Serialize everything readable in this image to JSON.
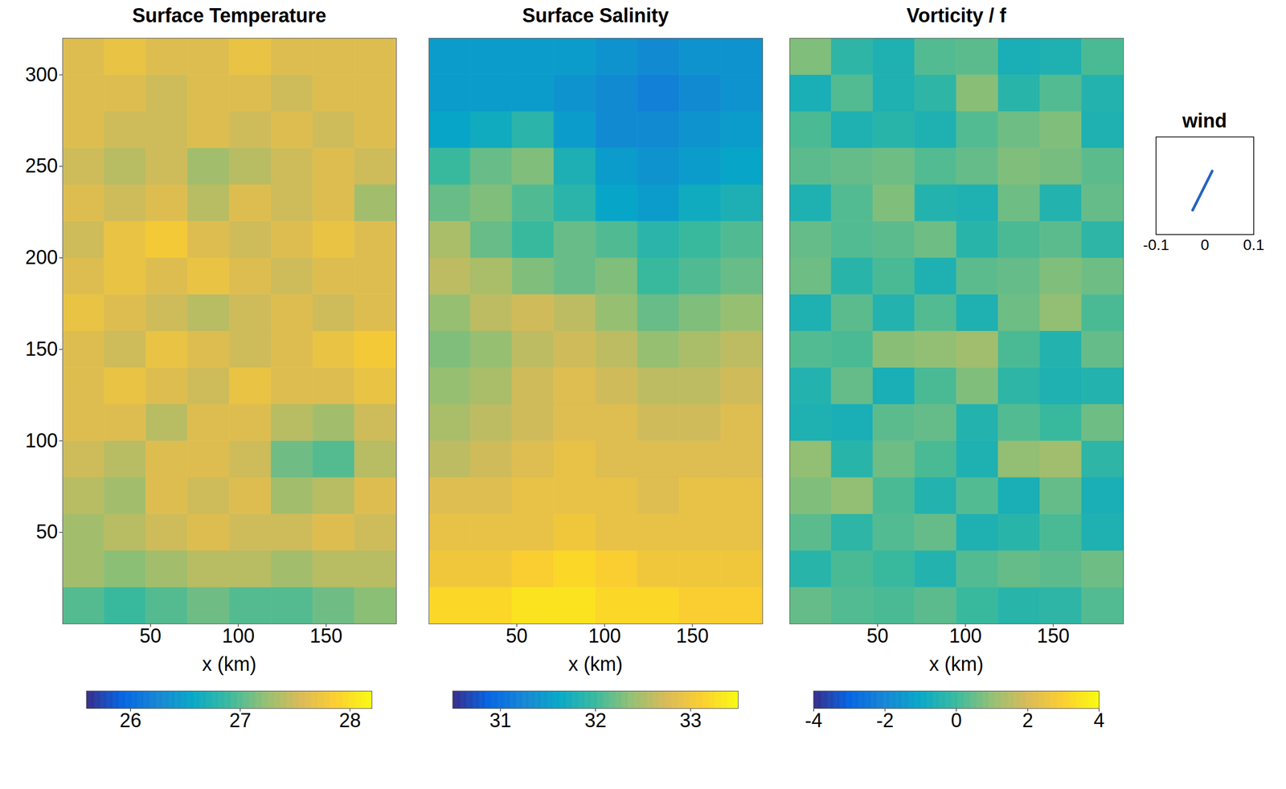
{
  "chart_data": [
    {
      "type": "heatmap",
      "title": "Surface Temperature",
      "xlabel": "x (km)",
      "xlim": [
        0,
        190
      ],
      "ylim": [
        0,
        320
      ],
      "xticks": [
        50,
        100,
        150
      ],
      "yticks": [
        50,
        100,
        150,
        200,
        250,
        300
      ],
      "x_edges": [
        0,
        23.75,
        47.5,
        71.25,
        95,
        118.75,
        142.5,
        166.25,
        190
      ],
      "y_edges": [
        0,
        20,
        40,
        60,
        80,
        100,
        120,
        140,
        160,
        180,
        200,
        220,
        240,
        260,
        280,
        300,
        320
      ],
      "values": [
        [
          27.0,
          26.9,
          27.0,
          27.1,
          27.0,
          27.0,
          27.1,
          27.2
        ],
        [
          27.3,
          27.2,
          27.3,
          27.4,
          27.4,
          27.3,
          27.4,
          27.4
        ],
        [
          27.3,
          27.4,
          27.5,
          27.6,
          27.5,
          27.5,
          27.6,
          27.5
        ],
        [
          27.4,
          27.3,
          27.6,
          27.5,
          27.6,
          27.3,
          27.4,
          27.6
        ],
        [
          27.5,
          27.4,
          27.6,
          27.6,
          27.5,
          27.1,
          27.0,
          27.4
        ],
        [
          27.6,
          27.6,
          27.4,
          27.6,
          27.6,
          27.4,
          27.3,
          27.5
        ],
        [
          27.6,
          27.7,
          27.6,
          27.5,
          27.7,
          27.6,
          27.6,
          27.7
        ],
        [
          27.6,
          27.5,
          27.7,
          27.6,
          27.5,
          27.6,
          27.7,
          27.8
        ],
        [
          27.7,
          27.6,
          27.5,
          27.4,
          27.5,
          27.6,
          27.5,
          27.6
        ],
        [
          27.6,
          27.7,
          27.6,
          27.7,
          27.6,
          27.5,
          27.6,
          27.6
        ],
        [
          27.5,
          27.7,
          27.8,
          27.6,
          27.5,
          27.6,
          27.7,
          27.6
        ],
        [
          27.6,
          27.5,
          27.6,
          27.4,
          27.6,
          27.5,
          27.6,
          27.3
        ],
        [
          27.5,
          27.4,
          27.5,
          27.3,
          27.4,
          27.5,
          27.6,
          27.5
        ],
        [
          27.6,
          27.5,
          27.5,
          27.6,
          27.5,
          27.6,
          27.5,
          27.6
        ],
        [
          27.6,
          27.6,
          27.5,
          27.6,
          27.6,
          27.5,
          27.6,
          27.6
        ],
        [
          27.6,
          27.7,
          27.6,
          27.6,
          27.7,
          27.6,
          27.6,
          27.6
        ]
      ],
      "colorbar": {
        "range": [
          25.6,
          28.2
        ],
        "ticks": [
          26,
          27,
          28
        ]
      }
    },
    {
      "type": "heatmap",
      "title": "Surface Salinity",
      "xlabel": "x (km)",
      "tick_labels": "x",
      "xlim": [
        0,
        190
      ],
      "ylim": [
        0,
        320
      ],
      "xticks": [
        50,
        100,
        150
      ],
      "yticks": [
        50,
        100,
        150,
        200,
        250,
        300
      ],
      "x_edges": [
        0,
        23.75,
        47.5,
        71.25,
        95,
        118.75,
        142.5,
        166.25,
        190
      ],
      "y_edges": [
        0,
        20,
        40,
        60,
        80,
        100,
        120,
        140,
        160,
        180,
        200,
        220,
        240,
        260,
        280,
        300,
        320
      ],
      "values": [
        [
          33.2,
          33.2,
          33.3,
          33.3,
          33.2,
          33.2,
          33.1,
          33.1
        ],
        [
          33.0,
          33.0,
          33.1,
          33.2,
          33.1,
          33.0,
          33.0,
          33.0
        ],
        [
          32.9,
          32.9,
          32.9,
          33.0,
          32.9,
          32.9,
          32.9,
          32.9
        ],
        [
          32.8,
          32.8,
          32.9,
          32.9,
          32.9,
          32.8,
          32.9,
          32.9
        ],
        [
          32.6,
          32.7,
          32.8,
          32.9,
          32.8,
          32.8,
          32.8,
          32.8
        ],
        [
          32.5,
          32.6,
          32.7,
          32.8,
          32.8,
          32.7,
          32.7,
          32.8
        ],
        [
          32.4,
          32.5,
          32.7,
          32.8,
          32.7,
          32.6,
          32.6,
          32.7
        ],
        [
          32.3,
          32.4,
          32.6,
          32.7,
          32.6,
          32.4,
          32.5,
          32.6
        ],
        [
          32.4,
          32.6,
          32.7,
          32.6,
          32.4,
          32.2,
          32.3,
          32.4
        ],
        [
          32.6,
          32.5,
          32.3,
          32.2,
          32.3,
          32.0,
          32.1,
          32.2
        ],
        [
          32.5,
          32.2,
          32.0,
          32.2,
          32.1,
          31.9,
          32.0,
          32.1
        ],
        [
          32.2,
          32.3,
          32.1,
          31.9,
          31.6,
          31.5,
          31.7,
          31.8
        ],
        [
          32.0,
          32.2,
          32.3,
          31.8,
          31.5,
          31.4,
          31.5,
          31.6
        ],
        [
          31.6,
          31.7,
          31.9,
          31.5,
          31.3,
          31.3,
          31.4,
          31.5
        ],
        [
          31.5,
          31.5,
          31.5,
          31.4,
          31.3,
          31.2,
          31.3,
          31.4
        ],
        [
          31.5,
          31.5,
          31.5,
          31.5,
          31.4,
          31.3,
          31.4,
          31.4
        ]
      ],
      "colorbar": {
        "range": [
          30.5,
          33.5
        ],
        "ticks": [
          31,
          32,
          33
        ]
      }
    },
    {
      "type": "heatmap",
      "title": "Vorticity / f",
      "xlabel": "x (km)",
      "tick_labels": "x",
      "xlim": [
        0,
        190
      ],
      "ylim": [
        0,
        320
      ],
      "xticks": [
        50,
        100,
        150
      ],
      "yticks": [
        50,
        100,
        150,
        200,
        250,
        300
      ],
      "x_edges": [
        0,
        23.75,
        47.5,
        71.25,
        95,
        118.75,
        142.5,
        166.25,
        190
      ],
      "y_edges": [
        0,
        20,
        40,
        60,
        80,
        100,
        120,
        140,
        160,
        180,
        200,
        220,
        240,
        260,
        280,
        300,
        320
      ],
      "values": [
        [
          0.5,
          0.3,
          0.2,
          0.4,
          0.0,
          -0.3,
          -0.2,
          0.3
        ],
        [
          -0.3,
          0.2,
          0.0,
          -0.4,
          0.3,
          0.5,
          0.4,
          0.6
        ],
        [
          0.4,
          -0.2,
          0.3,
          0.5,
          -0.5,
          -0.3,
          0.2,
          -0.5
        ],
        [
          0.8,
          1.0,
          0.2,
          -0.4,
          0.3,
          -0.6,
          0.5,
          -0.6
        ],
        [
          1.0,
          -0.3,
          0.6,
          0.2,
          -0.5,
          1.0,
          1.2,
          -0.2
        ],
        [
          -0.5,
          -0.6,
          0.4,
          0.5,
          -0.4,
          0.3,
          0.0,
          0.6
        ],
        [
          -0.4,
          0.5,
          -0.6,
          0.2,
          0.8,
          -0.2,
          -0.5,
          -0.4
        ],
        [
          0.3,
          0.2,
          0.9,
          1.0,
          1.2,
          0.2,
          -0.4,
          0.5
        ],
        [
          -0.5,
          0.4,
          -0.4,
          0.3,
          -0.5,
          0.6,
          1.0,
          0.2
        ],
        [
          0.6,
          -0.3,
          0.2,
          -0.5,
          0.4,
          0.5,
          0.8,
          0.6
        ],
        [
          0.5,
          0.3,
          0.4,
          0.6,
          -0.3,
          0.2,
          0.4,
          -0.2
        ],
        [
          -0.5,
          0.3,
          0.8,
          -0.4,
          -0.5,
          0.6,
          -0.4,
          0.5
        ],
        [
          0.4,
          0.5,
          0.6,
          0.3,
          0.5,
          0.8,
          0.7,
          0.4
        ],
        [
          0.2,
          -0.5,
          -0.3,
          -0.5,
          0.3,
          0.6,
          0.8,
          -0.5
        ],
        [
          -0.6,
          0.3,
          -0.5,
          -0.2,
          0.9,
          -0.3,
          0.3,
          -0.4
        ],
        [
          0.8,
          -0.2,
          -0.5,
          0.3,
          0.4,
          -0.6,
          -0.5,
          0.2
        ]
      ],
      "colorbar": {
        "range": [
          -4,
          4
        ],
        "ticks": [
          -4,
          -2,
          0,
          2,
          4
        ]
      }
    },
    {
      "type": "line",
      "title": "wind",
      "tick_labels": "x",
      "color": "#2563c0",
      "x": [
        -0.025,
        0.015
      ],
      "values": [
        -0.05,
        0.03
      ],
      "xlim": [
        -0.1,
        0.1
      ],
      "ylim": [
        -0.1,
        0.1
      ],
      "xticks": [
        -0.1,
        0,
        0.1
      ]
    }
  ]
}
